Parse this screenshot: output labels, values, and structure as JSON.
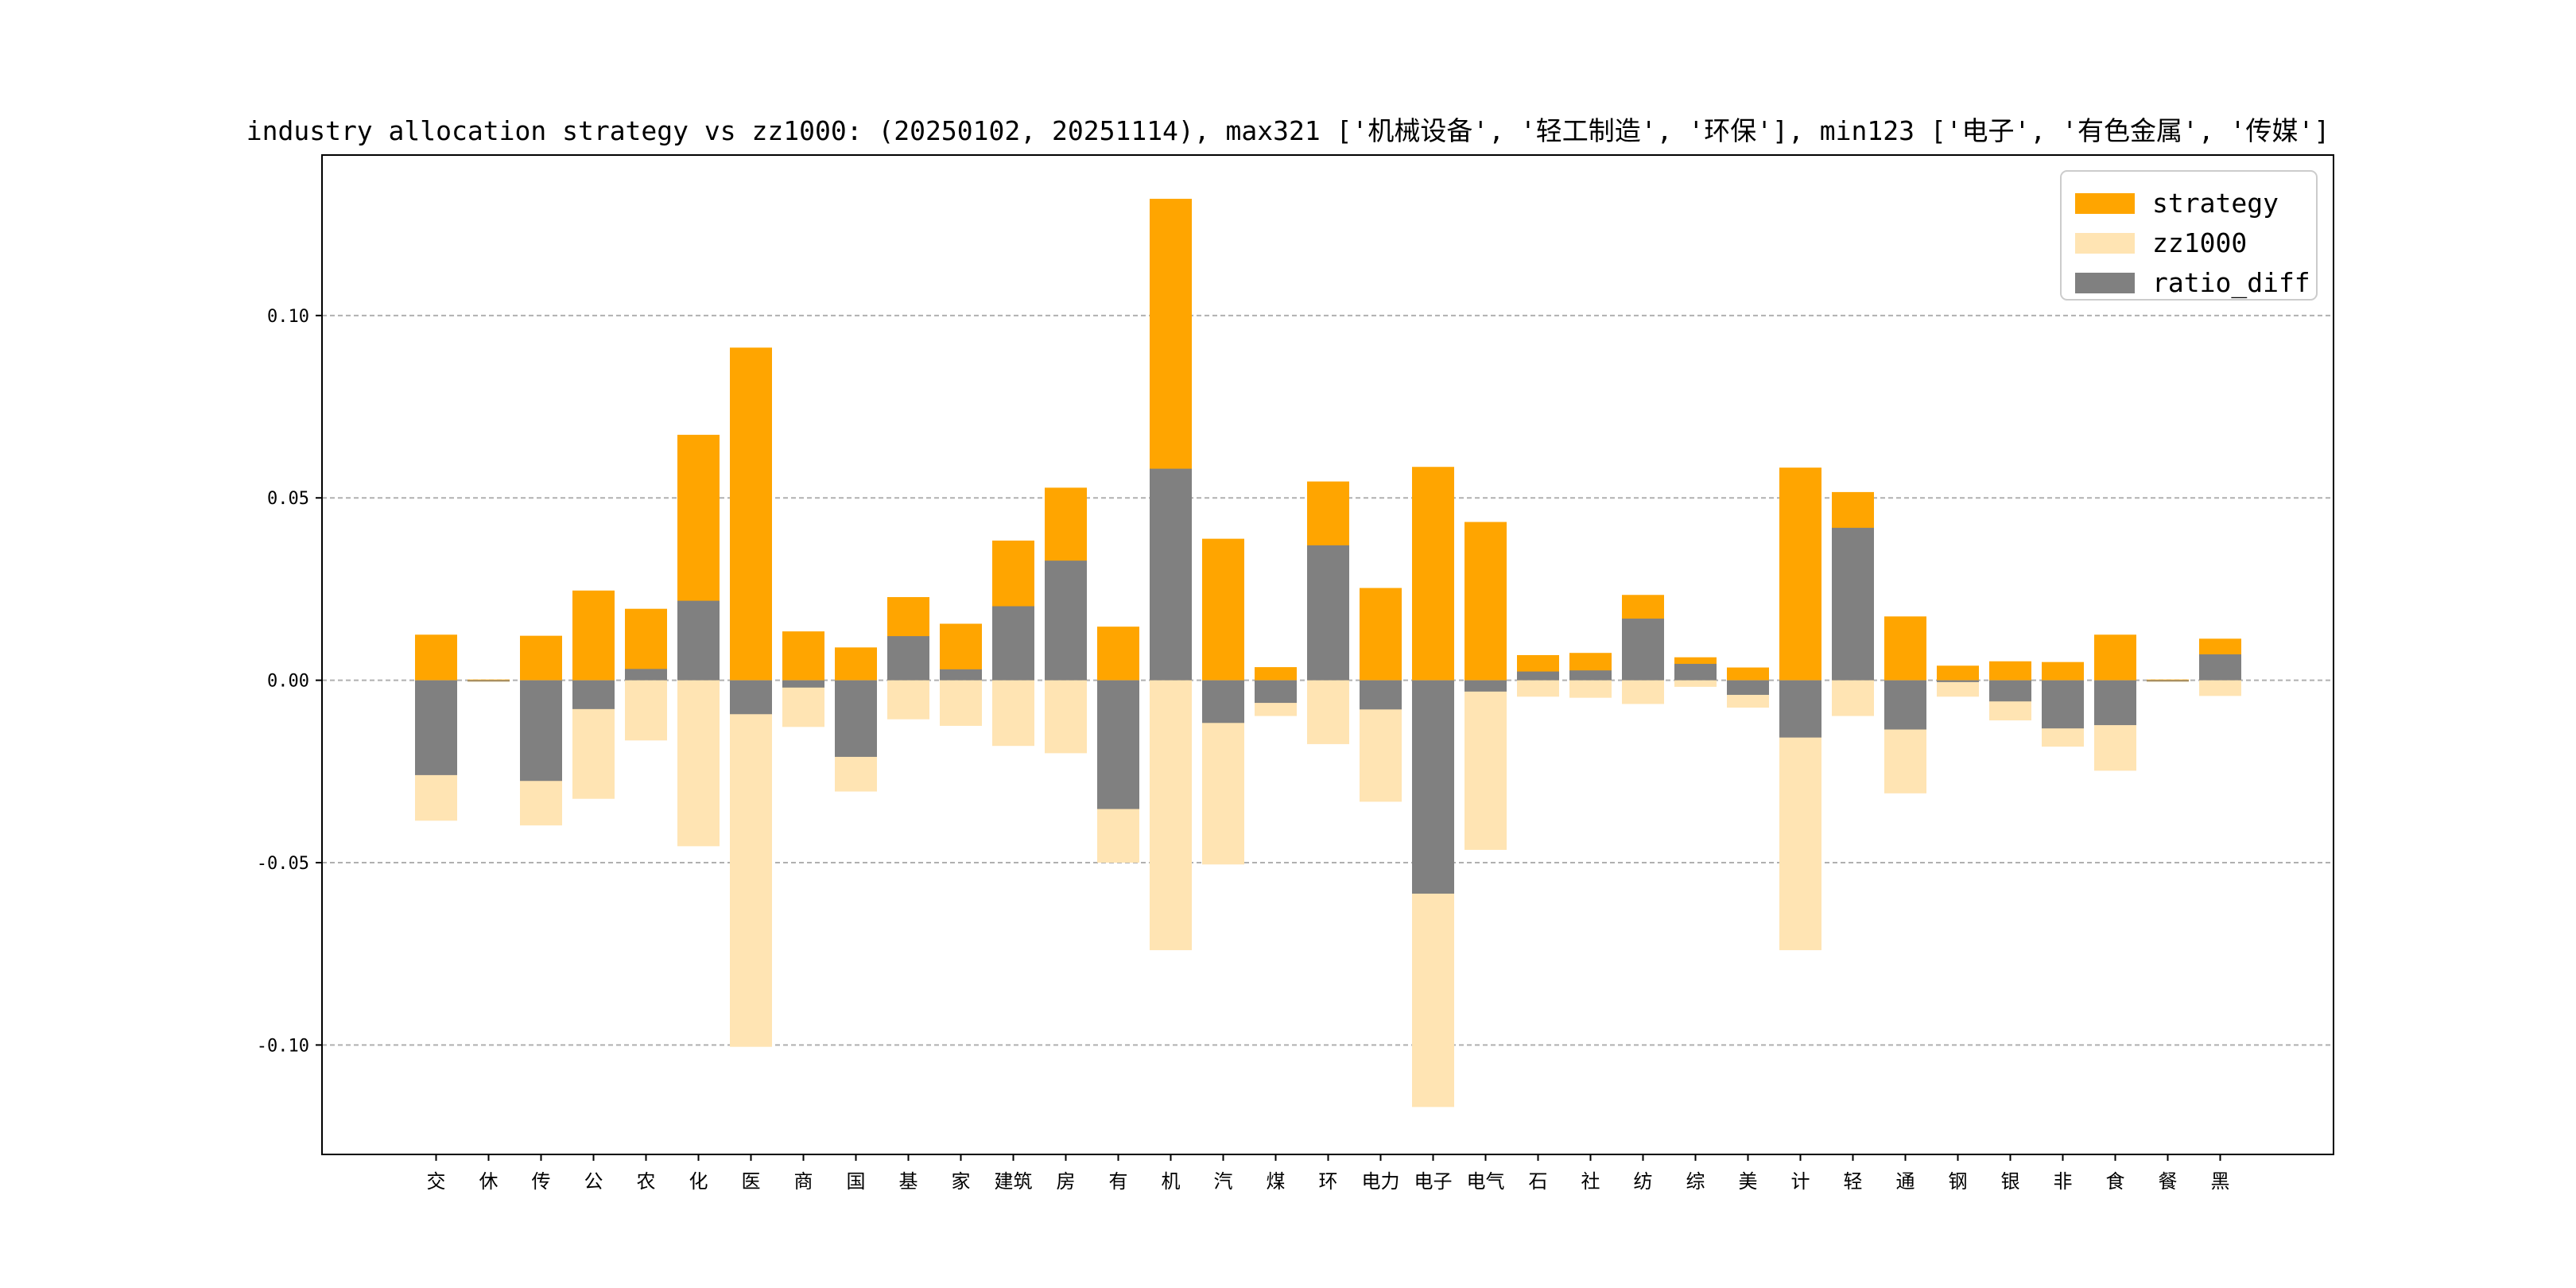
{
  "chart_data": {
    "type": "bar",
    "title": "industry allocation strategy vs zz1000: (20250102, 20251114), max321 ['机械设备', '轻工制造', '环保'], min123 ['电子', '有色金属', '传媒']",
    "xlabel": "",
    "ylabel": "",
    "ylim": [
      -0.13,
      0.144
    ],
    "yticks": [
      -0.1,
      -0.05,
      0.0,
      0.05,
      0.1
    ],
    "ytick_labels": [
      "-0.10",
      "-0.05",
      "0.00",
      "0.05",
      "0.10"
    ],
    "grid": "horizontal dashed",
    "legend_position": "top-right",
    "categories": [
      "交",
      "休",
      "传",
      "公",
      "农",
      "化",
      "医",
      "商",
      "国",
      "基",
      "家",
      "建筑",
      "房",
      "有",
      "机",
      "汽",
      "煤",
      "环",
      "电力",
      "电子",
      "电气",
      "石",
      "社",
      "纺",
      "综",
      "美",
      "计",
      "轻",
      "通",
      "钢",
      "银",
      "非",
      "食",
      "餐",
      "黑"
    ],
    "series": [
      {
        "name": "strategy",
        "color": "#FFA500",
        "values": [
          0.0125,
          0.0002,
          0.0122,
          0.0246,
          0.0196,
          0.0673,
          0.0912,
          0.0134,
          0.009,
          0.0228,
          0.0155,
          0.0383,
          0.0528,
          0.0147,
          0.132,
          0.0388,
          0.0036,
          0.0545,
          0.0253,
          0.0585,
          0.0434,
          0.0069,
          0.0075,
          0.0234,
          0.0063,
          0.0035,
          0.0583,
          0.0516,
          0.0175,
          0.004,
          0.0052,
          0.005,
          0.0125,
          0.0002,
          0.0114
        ]
      },
      {
        "name": "zz1000",
        "color": "#FFE4B3",
        "values": [
          -0.0385,
          -0.0005,
          -0.0398,
          -0.0325,
          -0.0165,
          -0.0455,
          -0.1005,
          -0.0128,
          -0.0305,
          -0.0107,
          -0.0125,
          -0.018,
          -0.02,
          -0.05,
          -0.074,
          -0.0505,
          -0.0098,
          -0.0175,
          -0.0333,
          -0.117,
          -0.0465,
          -0.0045,
          -0.0048,
          -0.0065,
          -0.0018,
          -0.0075,
          -0.074,
          -0.0098,
          -0.031,
          -0.0045,
          -0.011,
          -0.0182,
          -0.0248,
          -0.0005,
          -0.0043
        ]
      },
      {
        "name": "ratio_diff",
        "color": "#808080",
        "values": [
          -0.026,
          -0.0003,
          -0.0276,
          -0.0079,
          0.0031,
          0.0218,
          -0.0093,
          -0.002,
          -0.021,
          0.0121,
          0.003,
          0.0203,
          0.0328,
          -0.0353,
          0.058,
          -0.0117,
          -0.0062,
          0.037,
          -0.008,
          -0.0585,
          -0.0031,
          0.0024,
          0.0027,
          0.0169,
          0.0045,
          -0.004,
          -0.0157,
          0.0418,
          -0.0135,
          -0.0005,
          -0.0058,
          -0.0132,
          -0.0123,
          -0.0003,
          0.0071
        ]
      }
    ]
  }
}
